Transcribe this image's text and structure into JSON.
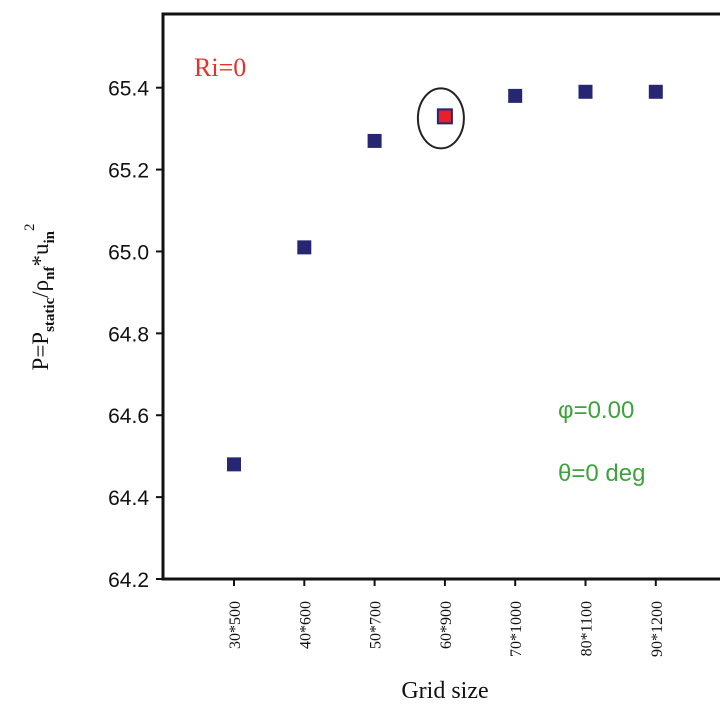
{
  "chart_data": {
    "type": "scatter",
    "title": "",
    "xlabel": "Grid size",
    "ylabel": {
      "base": "P=P",
      "sub1": "static",
      "mid": "/ρ",
      "sub2": "nf",
      "tail": "*u",
      "sub3": "in",
      "sup": "2"
    },
    "categories": [
      "30*500",
      "40*600",
      "50*700",
      "60*900",
      "70*1000",
      "80*1100",
      "90*1200"
    ],
    "series": [
      {
        "values": [
          64.48,
          65.01,
          65.27,
          65.33,
          65.38,
          65.39,
          65.39
        ],
        "color": "#262673"
      }
    ],
    "highlight": {
      "index": 3,
      "color": "#e8202a",
      "ring": "ellipse"
    },
    "yticks": [
      "64.2",
      "64.4",
      "64.6",
      "64.8",
      "65.0",
      "65.2",
      "65.4"
    ],
    "ylim": [
      64.2,
      65.58
    ],
    "grid": false,
    "annotations": [
      {
        "text": "Ri=0",
        "color": "#e8302a"
      },
      {
        "text": "φ=0.00",
        "color": "#3da33d"
      },
      {
        "text": "θ=0 deg",
        "color": "#3da33d"
      }
    ]
  }
}
